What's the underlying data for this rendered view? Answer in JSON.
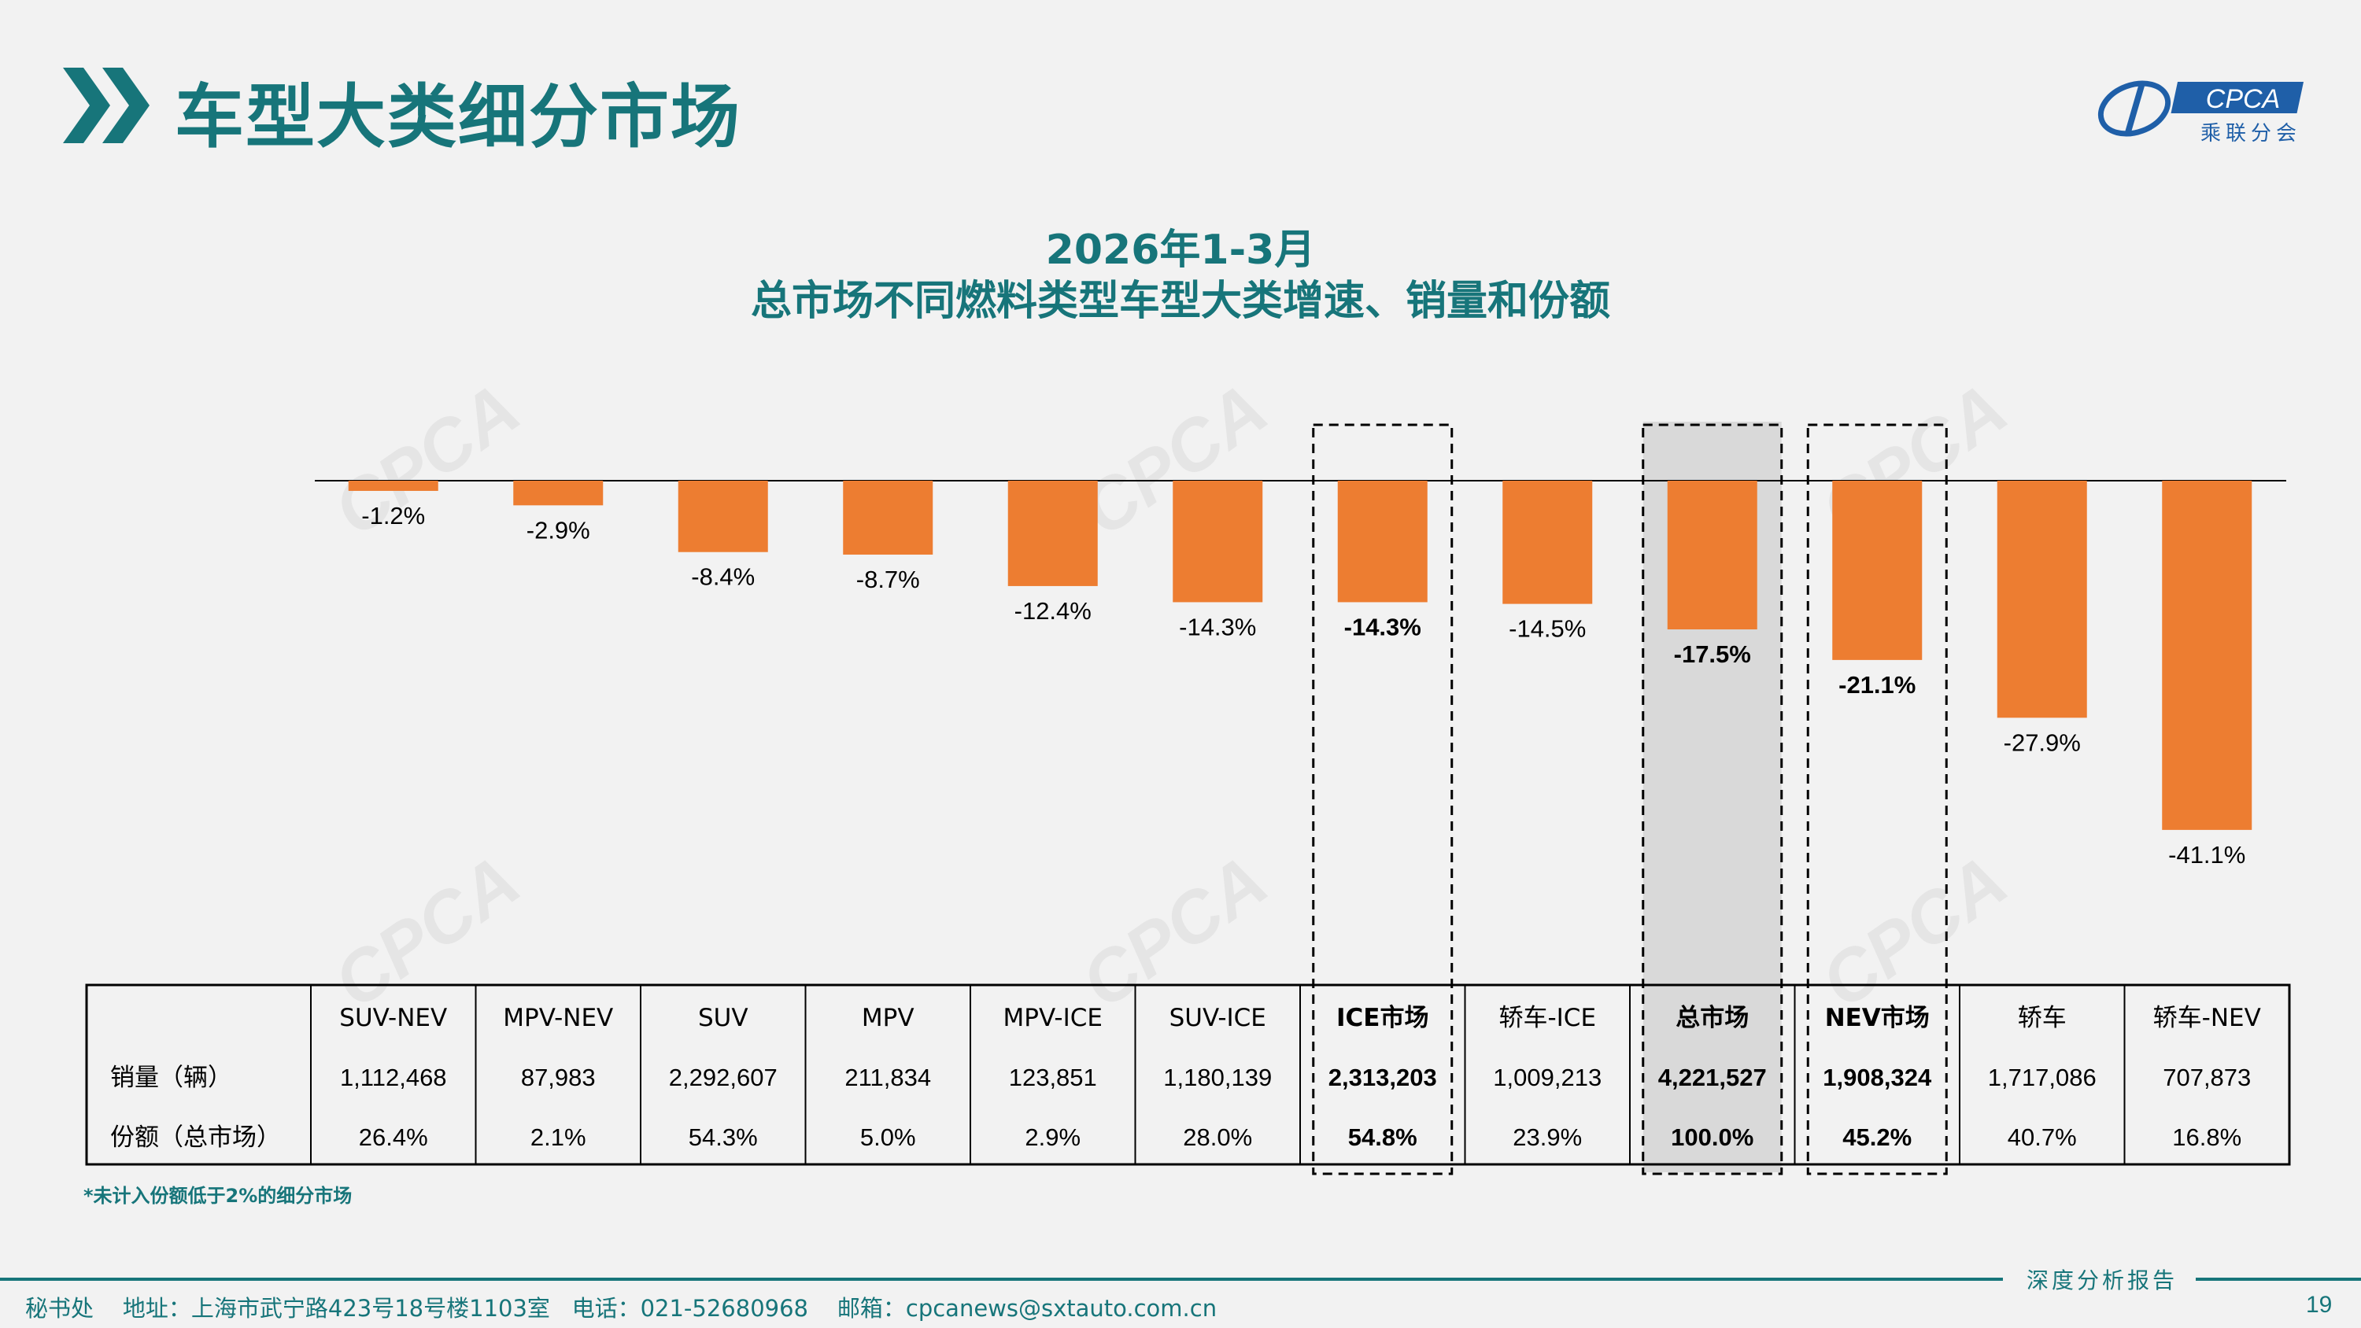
{
  "header": {
    "title": "车型大类细分市场",
    "logo_text": "CPCA",
    "logo_subtext": "乘联分会"
  },
  "chart_title": {
    "line1": "2026年1-3月",
    "line2": "总市场不同燃料类型车型大类增速、销量和份额"
  },
  "watermark_text": "CPCA",
  "chart_data": {
    "type": "bar",
    "categories": [
      "SUV-NEV",
      "MPV-NEV",
      "SUV",
      "MPV",
      "MPV-ICE",
      "SUV-ICE",
      "ICE市场",
      "轿车-ICE",
      "总市场",
      "NEV市场",
      "轿车",
      "轿车-NEV"
    ],
    "values": [
      -1.2,
      -2.9,
      -8.4,
      -8.7,
      -12.4,
      -14.3,
      -14.3,
      -14.5,
      -17.5,
      -21.1,
      -27.9,
      -41.1
    ],
    "labels": [
      "-1.2%",
      "-2.9%",
      "-8.4%",
      "-8.7%",
      "-12.4%",
      "-14.3%",
      "-14.3%",
      "-14.5%",
      "-17.5%",
      "-21.1%",
      "-27.9%",
      "-41.1%"
    ],
    "bold": [
      false,
      false,
      false,
      false,
      false,
      false,
      true,
      false,
      true,
      true,
      false,
      false
    ],
    "highlight_boxes": [
      "ICE市场",
      "总市场",
      "NEV市场"
    ],
    "shaded": [
      "总市场"
    ],
    "ylim": [
      -45,
      0
    ],
    "color": "#ed7d31",
    "table": {
      "rows": [
        {
          "label": "销量（辆）",
          "values": [
            "1,112,468",
            "87,983",
            "2,292,607",
            "211,834",
            "123,851",
            "1,180,139",
            "2,313,203",
            "1,009,213",
            "4,221,527",
            "1,908,324",
            "1,717,086",
            "707,873"
          ]
        },
        {
          "label": "份额（总市场）",
          "values": [
            "26.4%",
            "2.1%",
            "54.3%",
            "5.0%",
            "2.9%",
            "28.0%",
            "54.8%",
            "23.9%",
            "100.0%",
            "45.2%",
            "40.7%",
            "16.8%"
          ]
        }
      ]
    }
  },
  "footnote": "*未计入份额低于2%的细分市场",
  "footer": {
    "report_label": "深度分析报告",
    "contact": "秘书处    地址：上海市武宁路423号18号楼1103室   电话：021-52680968    邮箱：cpcanews@sxtauto.com.cn",
    "page_number": "19"
  },
  "colors": {
    "teal": "#17757a",
    "bar": "#ed7d31",
    "shade": "#d9d9d9"
  }
}
